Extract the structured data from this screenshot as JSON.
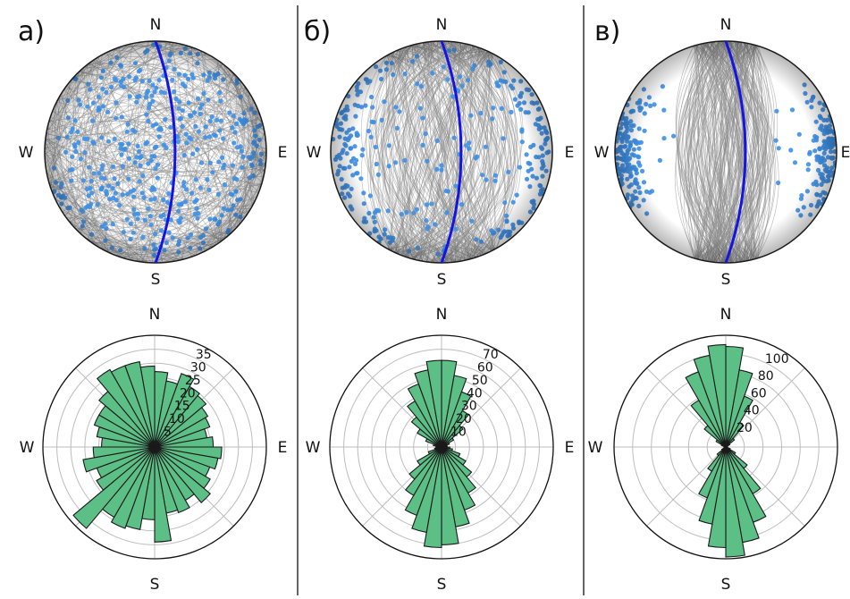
{
  "colors": {
    "pole_points": "#3d8fe6",
    "great_circles": "#8c8c8c",
    "reference_circle": "#1515e0",
    "rose_bars": "#5cbf86",
    "rose_bar_edge": "#1a1a1a",
    "grid": "#bdbdbd",
    "separator": "#000000"
  },
  "chart_data": [
    {
      "type": "stereonet",
      "panel": "а)",
      "directions": {
        "n": "N",
        "s": "S",
        "w": "W",
        "e": "E"
      },
      "points": {
        "count": 420,
        "distribution": "uniform"
      },
      "great_circles": {
        "count": 240,
        "distribution": "uniform"
      },
      "reference_great_circle": {
        "strike_deg": 0,
        "dip_deg": 70,
        "dip_direction": "E"
      }
    },
    {
      "type": "stereonet",
      "panel": "б)",
      "directions": {
        "n": "N",
        "s": "S",
        "w": "W",
        "e": "E"
      },
      "points": {
        "count": 320,
        "distribution": "concentrated near E and W margins"
      },
      "great_circles": {
        "count": 240,
        "distribution": "strikes mostly N-S"
      },
      "reference_great_circle": {
        "strike_deg": 0,
        "dip_deg": 70,
        "dip_direction": "E"
      }
    },
    {
      "type": "stereonet",
      "panel": "в)",
      "directions": {
        "n": "N",
        "s": "S",
        "w": "W",
        "e": "E"
      },
      "points": {
        "count": 320,
        "distribution": "tight clusters at E and W margins"
      },
      "great_circles": {
        "count": 220,
        "distribution": "strikes N-S, steep dips"
      },
      "reference_great_circle": {
        "strike_deg": 0,
        "dip_deg": 70,
        "dip_direction": "E"
      }
    },
    {
      "type": "polar_bar",
      "panel": "а)",
      "directions": {
        "n": "N",
        "s": "S",
        "w": "W",
        "e": "E"
      },
      "bin_width_deg": 10,
      "bin_centers_deg": [
        5,
        15,
        25,
        35,
        45,
        55,
        65,
        75,
        85,
        95,
        105,
        115,
        125,
        135,
        145,
        155,
        165,
        175,
        185,
        195,
        205,
        215,
        225,
        235,
        245,
        255,
        265,
        275,
        285,
        295,
        305,
        315,
        325,
        335,
        345,
        355
      ],
      "values": [
        27,
        24,
        28,
        25,
        24,
        22,
        21,
        19,
        21,
        24,
        23,
        21,
        23,
        26,
        22,
        25,
        24,
        34,
        26,
        30,
        31,
        29,
        38,
        24,
        22,
        26,
        22,
        19,
        21,
        23,
        23,
        26,
        32,
        31,
        31,
        29
      ],
      "r_max": 40,
      "r_ticks": [
        5,
        10,
        15,
        20,
        25,
        30,
        35
      ],
      "r_tick_labels": [
        "5",
        "10",
        "15",
        "20",
        "25",
        "30",
        "35"
      ],
      "theta_zero": "N",
      "theta_direction": "clockwise"
    },
    {
      "type": "polar_bar",
      "panel": "б)",
      "directions": {
        "n": "N",
        "s": "S",
        "w": "W",
        "e": "E"
      },
      "bin_width_deg": 10,
      "bin_centers_deg": [
        5,
        15,
        25,
        35,
        45,
        55,
        65,
        75,
        85,
        95,
        105,
        115,
        125,
        135,
        145,
        155,
        165,
        175,
        185,
        195,
        205,
        215,
        225,
        235,
        245,
        255,
        265,
        275,
        285,
        295,
        305,
        315,
        325,
        335,
        345,
        355
      ],
      "values": [
        62,
        52,
        42,
        30,
        20,
        10,
        6,
        4,
        4,
        6,
        8,
        14,
        20,
        28,
        38,
        48,
        58,
        70,
        72,
        62,
        52,
        40,
        30,
        20,
        10,
        5,
        4,
        4,
        6,
        12,
        20,
        28,
        38,
        48,
        56,
        62
      ],
      "r_max": 80,
      "r_ticks": [
        10,
        20,
        30,
        40,
        50,
        60,
        70
      ],
      "r_tick_labels": [
        "10",
        "20",
        "30",
        "40",
        "50",
        "60",
        "70"
      ],
      "theta_zero": "N",
      "theta_direction": "clockwise"
    },
    {
      "type": "polar_bar",
      "panel": "в)",
      "directions": {
        "n": "N",
        "s": "S",
        "w": "W",
        "e": "E"
      },
      "bin_width_deg": 10,
      "bin_centers_deg": [
        5,
        15,
        25,
        35,
        45,
        55,
        65,
        75,
        85,
        95,
        105,
        115,
        125,
        135,
        145,
        155,
        165,
        175,
        185,
        195,
        205,
        215,
        225,
        235,
        245,
        255,
        265,
        275,
        285,
        295,
        305,
        315,
        325,
        335,
        345,
        355
      ],
      "values": [
        108,
        84,
        58,
        30,
        12,
        5,
        2,
        1,
        1,
        1,
        2,
        5,
        12,
        30,
        58,
        86,
        104,
        118,
        108,
        84,
        58,
        30,
        12,
        5,
        2,
        1,
        1,
        1,
        2,
        5,
        12,
        30,
        58,
        86,
        100,
        110
      ],
      "r_max": 120,
      "r_ticks": [
        20,
        40,
        60,
        80,
        100
      ],
      "r_tick_labels": [
        "20",
        "40",
        "60",
        "80",
        "100"
      ],
      "theta_zero": "N",
      "theta_direction": "clockwise"
    }
  ]
}
